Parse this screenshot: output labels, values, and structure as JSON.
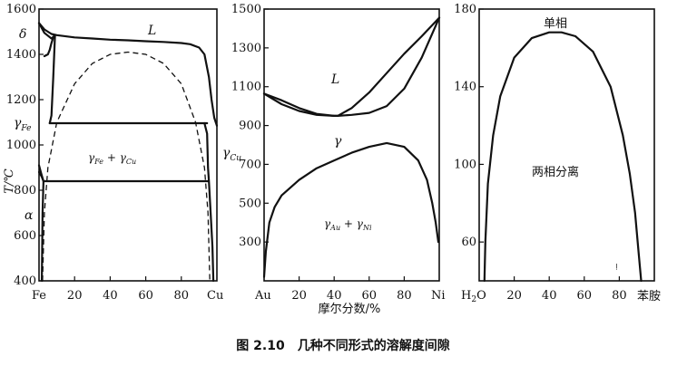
{
  "caption": "图 2.10　几种不同形式的溶解度间隙",
  "chart_data": [
    {
      "id": "fe-cu",
      "type": "line",
      "title": "",
      "ylabel": "T/℃",
      "xlabel": "",
      "xlim": [
        0,
        100
      ],
      "ylim": [
        400,
        1600
      ],
      "yticks": [
        400,
        600,
        800,
        1000,
        1200,
        1400,
        1600
      ],
      "xticks": [
        20,
        40,
        60,
        80
      ],
      "xcat_left": "Fe",
      "xcat_right": "Cu",
      "series": [
        {
          "name": "liquidus",
          "style": "solid",
          "x": [
            0,
            3,
            7,
            10,
            20,
            30,
            40,
            50,
            60,
            70,
            80,
            85,
            90,
            93,
            95.5,
            97,
            98.5,
            100
          ],
          "y": [
            1538,
            1510,
            1490,
            1485,
            1475,
            1470,
            1465,
            1462,
            1458,
            1455,
            1450,
            1445,
            1430,
            1400,
            1300,
            1200,
            1120,
            1085
          ]
        },
        {
          "name": "delta-field",
          "style": "solid",
          "x": [
            0,
            3,
            7,
            9
          ],
          "y": [
            1538,
            1495,
            1470,
            1485
          ]
        },
        {
          "name": "gamma-fe-solvus-top",
          "style": "solid",
          "x": [
            3,
            5,
            6,
            7,
            8,
            9
          ],
          "y": [
            1392,
            1400,
            1420,
            1450,
            1475,
            1485
          ]
        },
        {
          "name": "gamma-fe-solvus",
          "style": "solid",
          "x": [
            6,
            7,
            8,
            9
          ],
          "y": [
            1096,
            1130,
            1300,
            1485
          ]
        },
        {
          "name": "peritectic-1096",
          "style": "solid",
          "x": [
            6,
            40,
            80,
            94.5
          ],
          "y": [
            1096,
            1096,
            1096,
            1096
          ]
        },
        {
          "name": "eutectoid-850",
          "style": "solid",
          "x": [
            2.5,
            40,
            80,
            95
          ],
          "y": [
            840,
            840,
            840,
            840
          ]
        },
        {
          "name": "gamma-cu-solvus",
          "style": "solid",
          "x": [
            93,
            94.5,
            95,
            95.5,
            96.5,
            97.5,
            98
          ],
          "y": [
            1096,
            1050,
            900,
            840,
            700,
            550,
            400
          ]
        },
        {
          "name": "alpha-fe-solvus",
          "style": "solid",
          "x": [
            0,
            1,
            2.5,
            2,
            1.6
          ],
          "y": [
            910,
            880,
            840,
            700,
            400
          ]
        },
        {
          "name": "alpha-upper",
          "style": "solid",
          "x": [
            0,
            1.5,
            2.5
          ],
          "y": [
            880,
            860,
            840
          ]
        },
        {
          "name": "metastable-gap",
          "style": "dashed",
          "x": [
            2,
            3,
            5,
            10,
            20,
            30,
            40,
            50,
            60,
            70,
            80,
            88,
            93,
            95,
            96
          ],
          "y": [
            400,
            700,
            900,
            1100,
            1270,
            1360,
            1400,
            1410,
            1400,
            1360,
            1270,
            1100,
            900,
            700,
            400
          ]
        }
      ],
      "labels": {
        "L": "L",
        "delta": "δ",
        "gamma_fe": "γ",
        "gamma_fe_sub": "Fe",
        "two_phase_a": "γ",
        "two_phase_a_sub": "Fe",
        "two_phase_plus": " + γ",
        "two_phase_b_sub": "Cu",
        "gamma_cu": "γ",
        "gamma_cu_sub": "Cu",
        "alpha": "α"
      }
    },
    {
      "id": "au-ni",
      "type": "line",
      "title": "",
      "ylabel": "",
      "xlabel": "摩尔分数/%",
      "xlim": [
        0,
        100
      ],
      "ylim": [
        100,
        1500
      ],
      "yticks": [
        300,
        500,
        700,
        900,
        1100,
        1300,
        1500
      ],
      "xticks": [
        20,
        40,
        60,
        80
      ],
      "xcat_left": "Au",
      "xcat_right": "Ni",
      "series": [
        {
          "name": "liquidus",
          "style": "solid",
          "x": [
            0,
            10,
            20,
            30,
            40,
            42,
            50,
            60,
            70,
            80,
            90,
            100
          ],
          "y": [
            1064,
            1030,
            990,
            960,
            950,
            950,
            990,
            1070,
            1170,
            1270,
            1360,
            1455
          ]
        },
        {
          "name": "solidus",
          "style": "solid",
          "x": [
            0,
            10,
            20,
            30,
            40,
            42,
            50,
            60,
            70,
            80,
            90,
            100
          ],
          "y": [
            1064,
            1010,
            975,
            955,
            950,
            950,
            955,
            965,
            1000,
            1090,
            1250,
            1455
          ]
        },
        {
          "name": "miscibility-gap",
          "style": "solid",
          "x": [
            0,
            1,
            3,
            6,
            10,
            20,
            30,
            40,
            50,
            60,
            70,
            80,
            88,
            93,
            96,
            98,
            99.5
          ],
          "y": [
            120,
            250,
            400,
            480,
            540,
            620,
            680,
            720,
            760,
            790,
            810,
            790,
            720,
            620,
            500,
            400,
            300
          ]
        }
      ],
      "labels": {
        "L": "L",
        "gamma": "γ",
        "two_phase_a": "γ",
        "two_phase_a_sub": "Au",
        "two_phase_plus": " + γ",
        "two_phase_b_sub": "Ni"
      }
    },
    {
      "id": "water-aniline",
      "type": "line",
      "title": "",
      "ylabel": "",
      "xlabel": "",
      "xlim": [
        0,
        100
      ],
      "ylim": [
        40,
        180
      ],
      "yticks": [
        60,
        100,
        140,
        180
      ],
      "xticks": [
        20,
        40,
        60,
        80
      ],
      "xcat_left_main": "H",
      "xcat_left_sub": "2",
      "xcat_left_tail": "O",
      "xcat_right": "苯胺",
      "series": [
        {
          "name": "solubility-curve",
          "style": "solid",
          "x": [
            3,
            3.5,
            5,
            8,
            12,
            20,
            30,
            40,
            47,
            55,
            65,
            75,
            82,
            86,
            89,
            91,
            92.5
          ],
          "y": [
            40,
            60,
            90,
            115,
            135,
            155,
            165,
            168,
            168,
            166,
            158,
            140,
            115,
            95,
            75,
            55,
            40
          ]
        }
      ],
      "labels": {
        "single_phase": "单相",
        "two_phase": "两相分离",
        "stray_mark": "ǃ"
      }
    }
  ]
}
